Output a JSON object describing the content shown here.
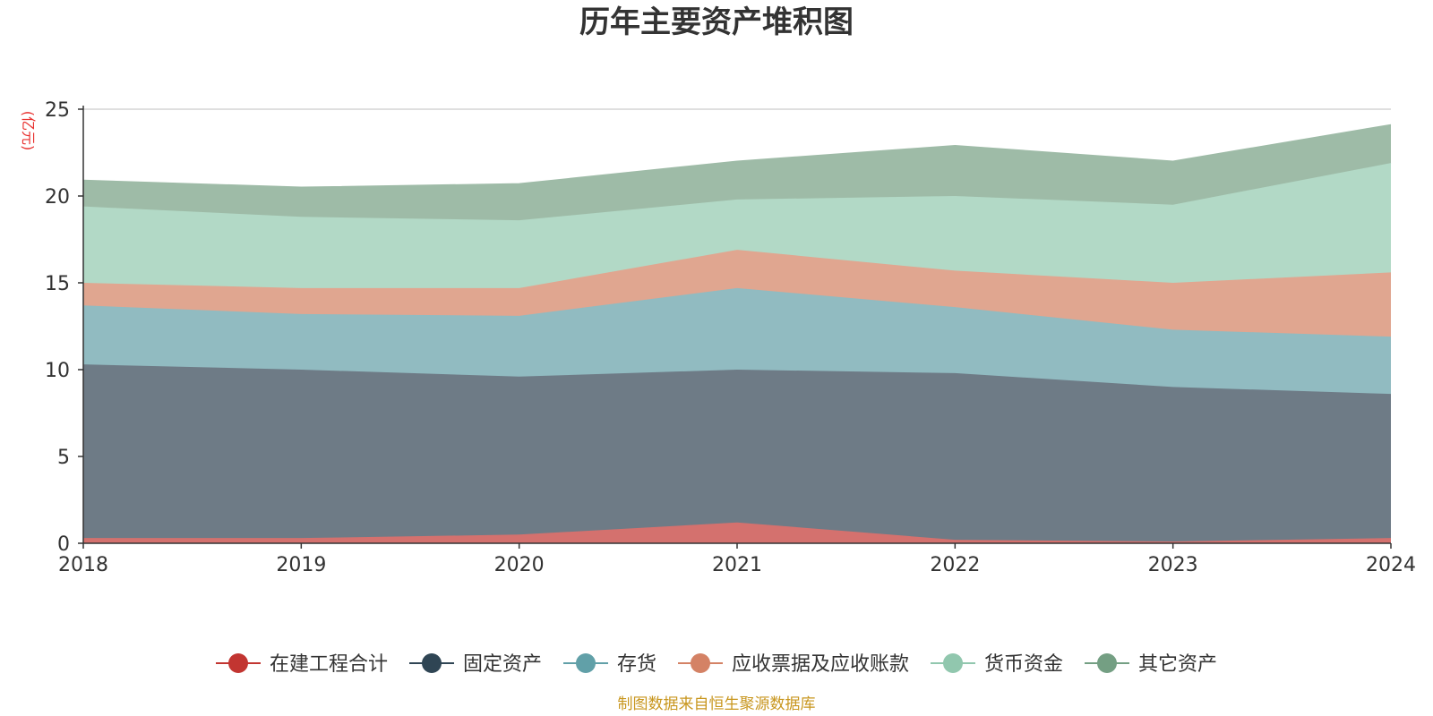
{
  "chart_data": {
    "type": "area",
    "stacked": true,
    "title": "历年主要资产堆积图",
    "ylabel": "(亿元)",
    "xlabel": "",
    "x": [
      "2018",
      "2019",
      "2020",
      "2021",
      "2022",
      "2023",
      "2024"
    ],
    "ylim": [
      0,
      25
    ],
    "yticks": [
      "0",
      "5",
      "10",
      "15",
      "20",
      "25"
    ],
    "grid": true,
    "legend_position": "bottom",
    "series": [
      {
        "name": "在建工程合计",
        "color": "#c23531",
        "fill": "#d4716e",
        "values": [
          0.3,
          0.3,
          0.5,
          1.2,
          0.2,
          0.1,
          0.3
        ]
      },
      {
        "name": "固定资产",
        "color": "#2f4554",
        "fill": "#6e7b86",
        "values": [
          10.0,
          9.7,
          9.1,
          8.8,
          9.6,
          8.9,
          8.3
        ]
      },
      {
        "name": "存货",
        "color": "#61a0a8",
        "fill": "#91bbc1",
        "values": [
          3.4,
          3.2,
          3.5,
          4.7,
          3.8,
          3.3,
          3.3
        ]
      },
      {
        "name": "应收票据及应收账款",
        "color": "#d48265",
        "fill": "#e0a690",
        "values": [
          1.3,
          1.5,
          1.6,
          2.2,
          2.1,
          2.7,
          3.7
        ]
      },
      {
        "name": "货币资金",
        "color": "#91c7ae",
        "fill": "#b2d9c6",
        "values": [
          4.4,
          4.1,
          3.9,
          2.9,
          4.3,
          4.5,
          6.3
        ]
      },
      {
        "name": "其它资产",
        "color": "#749f83",
        "fill": "#9ebba7",
        "values": [
          1.5,
          1.7,
          2.1,
          2.2,
          2.9,
          2.5,
          2.2
        ]
      }
    ]
  },
  "source": "制图数据来自恒生聚源数据库"
}
